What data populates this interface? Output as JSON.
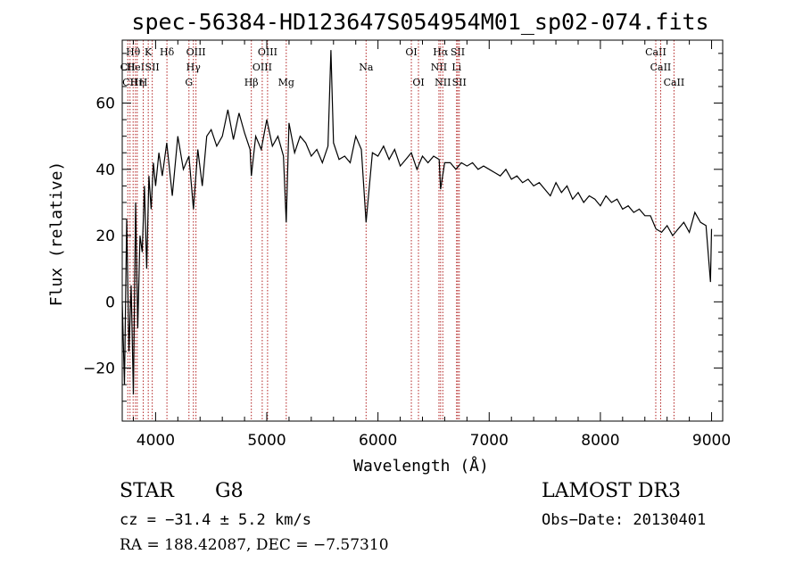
{
  "chart_data": {
    "type": "line",
    "title": "spec-56384-HD123647S054954M01_sp02-074.fits",
    "xlabel": "Wavelength (Å)",
    "ylabel": "Flux (relative)",
    "xlim": [
      3700,
      9100
    ],
    "ylim": [
      -36,
      79
    ],
    "x_ticks": [
      4000,
      5000,
      6000,
      7000,
      8000,
      9000
    ],
    "y_ticks": [
      -20,
      0,
      20,
      40,
      60
    ],
    "x_tick_labels": [
      "4000",
      "5000",
      "6000",
      "7000",
      "8000",
      "9000"
    ],
    "y_tick_labels": [
      "−20",
      "0",
      "20",
      "40",
      "60"
    ],
    "series": [
      {
        "name": "flux",
        "x": [
          3700,
          3720,
          3740,
          3760,
          3780,
          3800,
          3820,
          3840,
          3860,
          3880,
          3900,
          3920,
          3940,
          3960,
          3980,
          4000,
          4030,
          4060,
          4100,
          4150,
          4200,
          4250,
          4300,
          4340,
          4380,
          4420,
          4460,
          4500,
          4550,
          4600,
          4650,
          4700,
          4750,
          4800,
          4850,
          4861,
          4900,
          4950,
          5000,
          5050,
          5100,
          5150,
          5175,
          5200,
          5250,
          5300,
          5350,
          5400,
          5450,
          5500,
          5550,
          5577,
          5600,
          5650,
          5700,
          5750,
          5800,
          5850,
          5893,
          5950,
          6000,
          6050,
          6100,
          6150,
          6200,
          6250,
          6300,
          6350,
          6400,
          6450,
          6500,
          6550,
          6563,
          6600,
          6650,
          6700,
          6750,
          6800,
          6850,
          6900,
          6950,
          7000,
          7050,
          7100,
          7150,
          7200,
          7250,
          7300,
          7350,
          7400,
          7450,
          7500,
          7550,
          7600,
          7650,
          7700,
          7750,
          7800,
          7850,
          7900,
          7950,
          8000,
          8050,
          8100,
          8150,
          8200,
          8250,
          8300,
          8350,
          8400,
          8450,
          8500,
          8550,
          8600,
          8650,
          8700,
          8750,
          8800,
          8850,
          8900,
          8950,
          8990,
          9000
        ],
        "values": [
          0,
          -25,
          25,
          -15,
          5,
          -28,
          30,
          -8,
          20,
          15,
          35,
          10,
          38,
          28,
          42,
          35,
          45,
          38,
          48,
          32,
          50,
          40,
          44,
          28,
          46,
          35,
          50,
          52,
          47,
          50,
          58,
          49,
          57,
          51,
          46,
          38,
          50,
          46,
          55,
          47,
          50,
          44,
          24,
          54,
          45,
          50,
          48,
          44,
          46,
          42,
          47,
          76,
          48,
          43,
          44,
          42,
          50,
          46,
          24,
          45,
          44,
          47,
          43,
          46,
          41,
          43,
          45,
          40,
          44,
          42,
          44,
          43,
          34,
          42,
          42,
          40,
          42,
          41,
          42,
          40,
          41,
          40,
          39,
          38,
          40,
          37,
          38,
          36,
          37,
          35,
          36,
          34,
          32,
          36,
          33,
          35,
          31,
          33,
          30,
          32,
          31,
          29,
          32,
          30,
          31,
          28,
          29,
          27,
          28,
          26,
          26,
          22,
          21,
          23,
          20,
          22,
          24,
          21,
          27,
          24,
          23,
          6,
          22
        ]
      }
    ],
    "line_markers": [
      {
        "wavelength": 3750,
        "label": "CII",
        "row": 2
      },
      {
        "wavelength": 3770,
        "label": "CII",
        "row": 3
      },
      {
        "wavelength": 3798,
        "label": "Hθ",
        "row": 1
      },
      {
        "wavelength": 3819,
        "label": "HeI",
        "row": 2
      },
      {
        "wavelength": 3835,
        "label": "Hη",
        "row": 3
      },
      {
        "wavelength": 3889,
        "label": "H",
        "row": 3
      },
      {
        "wavelength": 3934,
        "label": "K",
        "row": 1
      },
      {
        "wavelength": 3970,
        "label": "SII",
        "row": 2
      },
      {
        "wavelength": 4102,
        "label": "Hδ",
        "row": 1
      },
      {
        "wavelength": 4300,
        "label": "G",
        "row": 3
      },
      {
        "wavelength": 4340,
        "label": "Hγ",
        "row": 2
      },
      {
        "wavelength": 4363,
        "label": "OIII",
        "row": 1
      },
      {
        "wavelength": 4861,
        "label": "Hβ",
        "row": 3
      },
      {
        "wavelength": 4959,
        "label": "OIII",
        "row": 2
      },
      {
        "wavelength": 5007,
        "label": "OIII",
        "row": 1
      },
      {
        "wavelength": 5175,
        "label": "Mg",
        "row": 3
      },
      {
        "wavelength": 5893,
        "label": "Na",
        "row": 2
      },
      {
        "wavelength": 6300,
        "label": "OI",
        "row": 1
      },
      {
        "wavelength": 6364,
        "label": "OI",
        "row": 3
      },
      {
        "wavelength": 6548,
        "label": "NII",
        "row": 2
      },
      {
        "wavelength": 6563,
        "label": "Hα",
        "row": 1
      },
      {
        "wavelength": 6583,
        "label": "NII",
        "row": 3
      },
      {
        "wavelength": 6707,
        "label": "Li",
        "row": 2
      },
      {
        "wavelength": 6717,
        "label": "SII",
        "row": 1
      },
      {
        "wavelength": 6731,
        "label": "SII",
        "row": 3
      },
      {
        "wavelength": 8498,
        "label": "CaII",
        "row": 1
      },
      {
        "wavelength": 8542,
        "label": "CaII",
        "row": 2
      },
      {
        "wavelength": 8662,
        "label": "CaII",
        "row": 3
      }
    ]
  },
  "footer": {
    "object_class": "STAR",
    "subclass": "G8",
    "survey": "LAMOST DR3",
    "cz_text": "cz = −31.4 ± 5.2 km/s",
    "obs_date": "Obs−Date: 20130401",
    "coords_text": "RA = 188.42087, DEC =  −7.57310"
  },
  "colors": {
    "background": "#ffffff",
    "axis": "#000000",
    "spectrum": "#000000",
    "line_marker": "#b22222"
  }
}
